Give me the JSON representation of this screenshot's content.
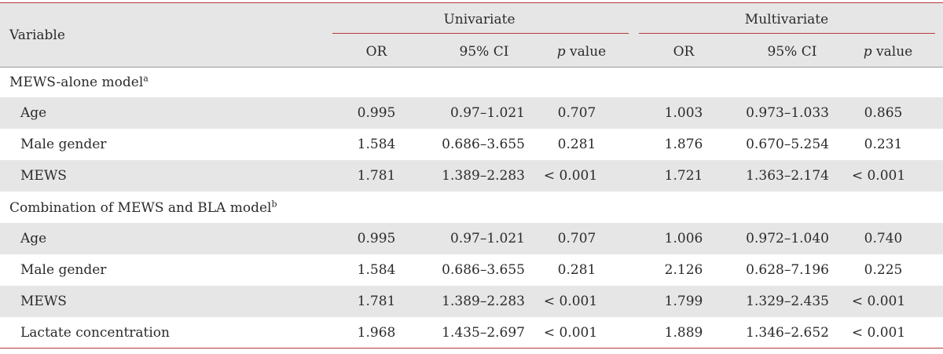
{
  "header": {
    "variable": "Variable",
    "univariate": "Univariate",
    "multivariate": "Multivariate",
    "columns": {
      "or": "OR",
      "ci": "95% CI",
      "p_italic": "p",
      "p_rest": " value"
    }
  },
  "sections": [
    {
      "title": "MEWS-alone model",
      "sup": "a",
      "rows": [
        {
          "variable": "Age",
          "u_or": "0.995",
          "u_ci": "0.97–1.021",
          "u_p": "0.707",
          "m_or": "1.003",
          "m_ci": "0.973–1.033",
          "m_p": "0.865"
        },
        {
          "variable": "Male gender",
          "u_or": "1.584",
          "u_ci": "0.686–3.655",
          "u_p": "0.281",
          "m_or": "1.876",
          "m_ci": "0.670–5.254",
          "m_p": "0.231"
        },
        {
          "variable": "MEWS",
          "u_or": "1.781",
          "u_ci": "1.389–2.283",
          "u_p": "< 0.001",
          "m_or": "1.721",
          "m_ci": "1.363–2.174",
          "m_p": "< 0.001"
        }
      ]
    },
    {
      "title": "Combination of MEWS and BLA model",
      "sup": "b",
      "rows": [
        {
          "variable": "Age",
          "u_or": "0.995",
          "u_ci": "0.97–1.021",
          "u_p": "0.707",
          "m_or": "1.006",
          "m_ci": "0.972–1.040",
          "m_p": "0.740"
        },
        {
          "variable": "Male gender",
          "u_or": "1.584",
          "u_ci": "0.686–3.655",
          "u_p": "0.281",
          "m_or": "2.126",
          "m_ci": "0.628–7.196",
          "m_p": "0.225"
        },
        {
          "variable": "MEWS",
          "u_or": "1.781",
          "u_ci": "1.389–2.283",
          "u_p": "< 0.001",
          "m_or": "1.799",
          "m_ci": "1.329–2.435",
          "m_p": "< 0.001"
        },
        {
          "variable": "Lactate concentration",
          "u_or": "1.968",
          "u_ci": "1.435–2.697",
          "u_p": "< 0.001",
          "m_or": "1.889",
          "m_ci": "1.346–2.652",
          "m_p": "< 0.001"
        }
      ]
    }
  ]
}
